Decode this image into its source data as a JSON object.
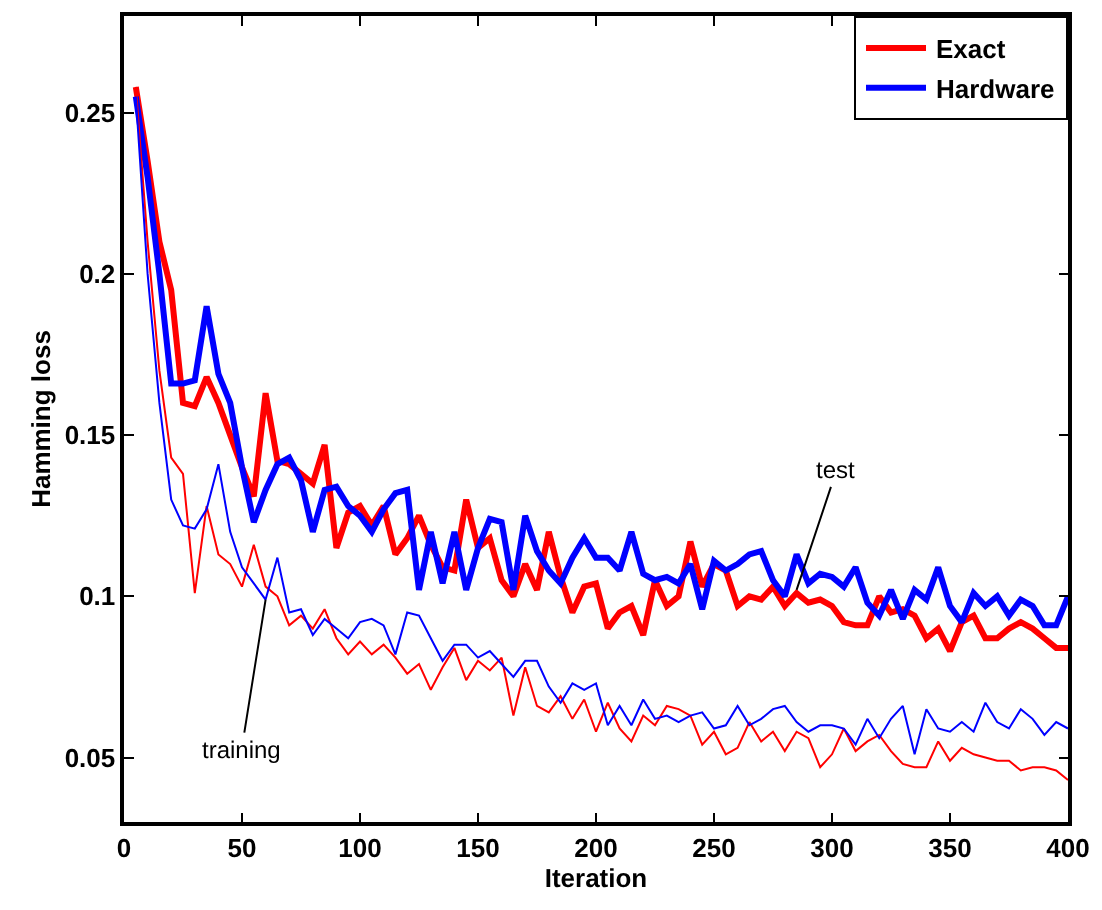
{
  "chart_data": {
    "type": "line",
    "xlabel": "Iteration",
    "ylabel": "Hamming loss",
    "x": [
      5,
      10,
      15,
      20,
      25,
      30,
      35,
      40,
      45,
      50,
      55,
      60,
      65,
      70,
      75,
      80,
      85,
      90,
      95,
      100,
      105,
      110,
      115,
      120,
      125,
      130,
      135,
      140,
      145,
      150,
      155,
      160,
      165,
      170,
      175,
      180,
      185,
      190,
      195,
      200,
      205,
      210,
      215,
      220,
      225,
      230,
      235,
      240,
      245,
      250,
      255,
      260,
      265,
      270,
      275,
      280,
      285,
      290,
      295,
      300,
      305,
      310,
      315,
      320,
      325,
      330,
      335,
      340,
      345,
      350,
      355,
      360,
      365,
      370,
      375,
      380,
      385,
      390,
      395,
      400
    ],
    "series": [
      {
        "name": "Exact",
        "color": "#ff0000",
        "values": [
          0.258,
          0.235,
          0.21,
          0.195,
          0.16,
          0.159,
          0.168,
          0.16,
          0.15,
          0.14,
          0.131,
          0.163,
          0.142,
          0.141,
          0.138,
          0.135,
          0.147,
          0.115,
          0.126,
          0.128,
          0.122,
          0.128,
          0.113,
          0.118,
          0.125,
          0.116,
          0.109,
          0.108,
          0.13,
          0.115,
          0.118,
          0.105,
          0.1,
          0.11,
          0.102,
          0.12,
          0.106,
          0.095,
          0.103,
          0.104,
          0.09,
          0.095,
          0.097,
          0.088,
          0.105,
          0.097,
          0.1,
          0.117,
          0.103,
          0.11,
          0.108,
          0.097,
          0.1,
          0.099,
          0.103,
          0.097,
          0.101,
          0.098,
          0.099,
          0.097,
          0.092,
          0.091,
          0.091,
          0.1,
          0.095,
          0.096,
          0.094,
          0.087,
          0.09,
          0.083,
          0.092,
          0.094,
          0.087,
          0.087,
          0.09,
          0.092,
          0.09,
          0.087,
          0.084,
          0.084
        ]
      },
      {
        "name": "Hardware",
        "color": "#0000ff",
        "values": [
          0.255,
          0.23,
          0.2,
          0.166,
          0.166,
          0.167,
          0.19,
          0.169,
          0.16,
          0.14,
          0.123,
          0.133,
          0.141,
          0.143,
          0.136,
          0.12,
          0.133,
          0.134,
          0.128,
          0.125,
          0.12,
          0.127,
          0.132,
          0.133,
          0.102,
          0.12,
          0.104,
          0.12,
          0.102,
          0.115,
          0.124,
          0.123,
          0.102,
          0.125,
          0.114,
          0.108,
          0.104,
          0.112,
          0.118,
          0.112,
          0.112,
          0.108,
          0.12,
          0.107,
          0.105,
          0.106,
          0.104,
          0.11,
          0.096,
          0.111,
          0.108,
          0.11,
          0.113,
          0.114,
          0.105,
          0.1,
          0.113,
          0.104,
          0.107,
          0.106,
          0.103,
          0.109,
          0.098,
          0.094,
          0.102,
          0.093,
          0.102,
          0.099,
          0.109,
          0.097,
          0.092,
          0.101,
          0.097,
          0.1,
          0.094,
          0.099,
          0.097,
          0.091,
          0.091,
          0.1
        ]
      },
      {
        "color": "#ff0000",
        "values": [
          0.258,
          0.21,
          0.17,
          0.143,
          0.138,
          0.101,
          0.128,
          0.113,
          0.11,
          0.103,
          0.116,
          0.103,
          0.1,
          0.091,
          0.094,
          0.09,
          0.096,
          0.087,
          0.082,
          0.086,
          0.082,
          0.085,
          0.081,
          0.076,
          0.079,
          0.071,
          0.078,
          0.084,
          0.074,
          0.08,
          0.077,
          0.081,
          0.063,
          0.078,
          0.066,
          0.064,
          0.069,
          0.062,
          0.068,
          0.058,
          0.067,
          0.059,
          0.055,
          0.063,
          0.06,
          0.066,
          0.065,
          0.063,
          0.054,
          0.058,
          0.051,
          0.053,
          0.061,
          0.055,
          0.058,
          0.052,
          0.058,
          0.056,
          0.047,
          0.051,
          0.059,
          0.052,
          0.055,
          0.057,
          0.052,
          0.048,
          0.047,
          0.047,
          0.055,
          0.049,
          0.053,
          0.051,
          0.05,
          0.049,
          0.049,
          0.046,
          0.047,
          0.047,
          0.046,
          0.043
        ]
      },
      {
        "color": "#0000ff",
        "values": [
          0.255,
          0.2,
          0.16,
          0.13,
          0.122,
          0.121,
          0.127,
          0.141,
          0.12,
          0.109,
          0.104,
          0.099,
          0.112,
          0.095,
          0.096,
          0.088,
          0.093,
          0.09,
          0.087,
          0.092,
          0.093,
          0.091,
          0.082,
          0.095,
          0.094,
          0.087,
          0.08,
          0.085,
          0.085,
          0.081,
          0.083,
          0.079,
          0.075,
          0.08,
          0.08,
          0.072,
          0.067,
          0.073,
          0.071,
          0.073,
          0.06,
          0.066,
          0.06,
          0.068,
          0.062,
          0.063,
          0.061,
          0.063,
          0.064,
          0.059,
          0.06,
          0.066,
          0.06,
          0.062,
          0.065,
          0.066,
          0.061,
          0.058,
          0.06,
          0.06,
          0.059,
          0.054,
          0.062,
          0.056,
          0.062,
          0.066,
          0.051,
          0.065,
          0.059,
          0.058,
          0.061,
          0.058,
          0.067,
          0.061,
          0.059,
          0.065,
          0.062,
          0.057,
          0.061,
          0.059
        ]
      }
    ],
    "annotations": [
      {
        "text": "test",
        "x": 285,
        "y": 0.102
      },
      {
        "text": "training",
        "x": 60,
        "y": 0.099
      }
    ],
    "xlim": [
      0,
      400
    ],
    "xticks": [
      0,
      50,
      100,
      150,
      200,
      250,
      300,
      350,
      400
    ],
    "ylim": [
      0.03,
      0.28
    ],
    "yticks": [
      0.05,
      0.1,
      0.15,
      0.2,
      0.25
    ],
    "legend": "top right",
    "marker": "none",
    "line_style": "solid"
  }
}
